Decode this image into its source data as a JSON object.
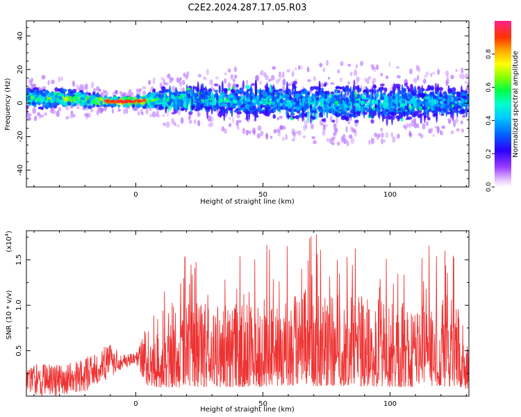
{
  "title": "C2E2.2024.287.17.05.R03",
  "chart_data": [
    {
      "type": "heatmap",
      "xlabel": "Height of straight line (km)",
      "ylabel": "Frequency (Hz)",
      "xlim": [
        -43,
        131
      ],
      "ylim": [
        -50,
        49
      ],
      "xticks": [
        0,
        50,
        100
      ],
      "yticks": [
        -40,
        -20,
        0,
        20,
        40
      ],
      "colorbar": {
        "label": "Normalized spectral amplitude",
        "range": [
          0,
          1
        ],
        "ticks": [
          0.0,
          0.2,
          0.4,
          0.6,
          0.8
        ],
        "tick_labels": [
          "0.0",
          "0.2",
          "0.4",
          "0.6",
          "0.8"
        ]
      },
      "description_points": [
        {
          "x": -40,
          "center_hz": 3,
          "spread_hz": 6,
          "amplitude": 0.5
        },
        {
          "x": -30,
          "center_hz": 3,
          "spread_hz": 6,
          "amplitude": 0.55
        },
        {
          "x": -20,
          "center_hz": 2,
          "spread_hz": 5,
          "amplitude": 0.6
        },
        {
          "x": -10,
          "center_hz": 1,
          "spread_hz": 3,
          "amplitude": 0.8
        },
        {
          "x": 0,
          "center_hz": 1,
          "spread_hz": 3,
          "amplitude": 0.85
        },
        {
          "x": 10,
          "center_hz": 2,
          "spread_hz": 7,
          "amplitude": 0.45
        },
        {
          "x": 25,
          "center_hz": 2,
          "spread_hz": 8,
          "amplitude": 0.4
        },
        {
          "x": 50,
          "center_hz": 1,
          "spread_hz": 10,
          "amplitude": 0.35
        },
        {
          "x": 75,
          "center_hz": 0,
          "spread_hz": 12,
          "amplitude": 0.35
        },
        {
          "x": 100,
          "center_hz": 0,
          "spread_hz": 11,
          "amplitude": 0.35
        },
        {
          "x": 125,
          "center_hz": 1,
          "spread_hz": 9,
          "amplitude": 0.35
        }
      ]
    },
    {
      "type": "line",
      "xlabel": "Height of straight line (km)",
      "ylabel": "SNR (10 * v/v)",
      "scale_label": "(x10",
      "scale_exponent": "4",
      "scale_close": ")",
      "xlim": [
        -43,
        131
      ],
      "ylim": [
        0,
        1.82
      ],
      "xticks": [
        0,
        50,
        100
      ],
      "yticks": [
        0.5,
        1.0,
        1.5
      ],
      "ytick_labels": [
        "0.5",
        "1.0",
        "1.5"
      ],
      "series": [
        {
          "color": "#ee3333",
          "envelope": [
            {
              "x": -43,
              "low": 0.0,
              "high": 0.38
            },
            {
              "x": -30,
              "low": 0.0,
              "high": 0.35
            },
            {
              "x": -20,
              "low": 0.05,
              "high": 0.42
            },
            {
              "x": -10,
              "low": 0.2,
              "high": 0.58
            },
            {
              "x": -5,
              "low": 0.3,
              "high": 0.48
            },
            {
              "x": 0,
              "low": 0.35,
              "high": 0.46
            },
            {
              "x": 5,
              "low": 0.05,
              "high": 0.9
            },
            {
              "x": 20,
              "low": 0.02,
              "high": 1.6
            },
            {
              "x": 40,
              "low": 0.02,
              "high": 1.55
            },
            {
              "x": 68,
              "low": 0.02,
              "high": 1.83
            },
            {
              "x": 100,
              "low": 0.02,
              "high": 1.6
            },
            {
              "x": 127,
              "low": 0.02,
              "high": 1.72
            },
            {
              "x": 131,
              "low": 0.02,
              "high": 1.0
            }
          ]
        }
      ]
    }
  ],
  "colors": {
    "axis": "#000000",
    "snr_line": "#ee3333"
  }
}
